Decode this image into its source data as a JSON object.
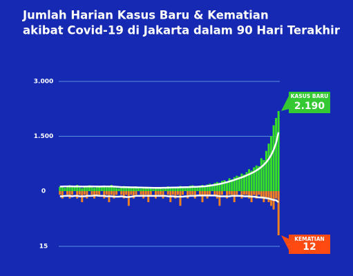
{
  "chart_data": {
    "type": "bar",
    "title": [
      "Jumlah Harian Kasus Baru &  Kematian",
      "akibat Covid-19 di Jakarta dalam 90 Hari Terakhir"
    ],
    "ylim": [
      0,
      3000
    ],
    "yticks": [
      {
        "value": 3000,
        "label": "3.000"
      },
      {
        "value": 1500,
        "label": "1.500"
      },
      0
    ],
    "y2lim": [
      0,
      15
    ],
    "y2ticks": [
      15
    ],
    "y2_inverted": true,
    "grid": true,
    "grid_color": "#5a8fe0",
    "series": [
      {
        "name": "KASUS BARU",
        "color": "#35e025",
        "label_color": "#34c832",
        "trend_color": "#ffffff",
        "values": [
          120,
          150,
          90,
          140,
          160,
          110,
          130,
          170,
          100,
          80,
          140,
          120,
          160,
          150,
          90,
          130,
          110,
          150,
          140,
          100,
          120,
          170,
          130,
          90,
          80,
          110,
          140,
          120,
          100,
          90,
          110,
          130,
          80,
          70,
          100,
          120,
          90,
          110,
          60,
          80,
          100,
          90,
          70,
          110,
          130,
          90,
          80,
          100,
          120,
          140,
          110,
          130,
          90,
          150,
          160,
          120,
          110,
          140,
          170,
          130,
          180,
          200,
          160,
          220,
          250,
          230,
          280,
          300,
          260,
          350,
          320,
          380,
          420,
          400,
          480,
          450,
          520,
          600,
          560,
          650,
          700,
          680,
          900,
          850,
          1100,
          1300,
          1500,
          1800,
          2000,
          2190
        ],
        "value_labels": [
          null,
          null,
          null,
          null,
          null,
          null,
          null,
          null,
          null,
          null,
          null,
          null,
          null,
          null,
          null,
          null,
          null,
          null,
          null,
          null,
          null,
          null,
          null,
          null,
          null,
          null,
          null,
          null,
          null,
          null,
          null,
          null,
          null,
          null,
          null,
          null,
          null,
          null,
          null,
          null,
          null,
          null,
          null,
          null,
          null,
          null,
          null,
          null,
          null,
          null,
          null,
          null,
          null,
          null,
          null,
          null,
          null,
          null,
          null,
          null,
          null,
          null,
          null,
          null,
          null,
          null,
          null,
          null,
          null,
          null,
          null,
          null,
          null,
          null,
          null,
          null,
          null,
          null,
          null,
          null,
          null,
          null,
          null,
          null,
          null,
          null,
          null,
          null,
          null,
          "2.190"
        ],
        "trend_values": [
          125,
          128,
          130,
          130,
          132,
          130,
          128,
          130,
          128,
          125,
          124,
          126,
          128,
          130,
          128,
          126,
          125,
          128,
          130,
          128,
          126,
          127,
          125,
          120,
          115,
          112,
          110,
          108,
          106,
          104,
          103,
          102,
          100,
          98,
          96,
          95,
          94,
          92,
          90,
          90,
          90,
          91,
          92,
          93,
          95,
          97,
          98,
          100,
          102,
          104,
          106,
          108,
          110,
          112,
          115,
          118,
          120,
          124,
          128,
          132,
          140,
          150,
          160,
          170,
          182,
          195,
          210,
          228,
          245,
          265,
          285,
          305,
          330,
          352,
          375,
          400,
          430,
          460,
          490,
          525,
          565,
          610,
          660,
          720,
          790,
          880,
          990,
          1130,
          1320,
          1610
        ]
      },
      {
        "name": "KEMATIAN",
        "color": "#f08020",
        "label_color": "#ff4a12",
        "trend_color": "#ffffff",
        "axis": "y2",
        "values": [
          1,
          2,
          0,
          1,
          2,
          1,
          0,
          2,
          1,
          3,
          1,
          2,
          0,
          1,
          2,
          1,
          1,
          0,
          2,
          1,
          3,
          1,
          2,
          1,
          0,
          1,
          2,
          1,
          4,
          1,
          2,
          1,
          0,
          1,
          2,
          1,
          3,
          1,
          0,
          2,
          1,
          1,
          2,
          0,
          1,
          3,
          1,
          2,
          1,
          4,
          1,
          0,
          2,
          1,
          1,
          2,
          0,
          1,
          3,
          1,
          2,
          1,
          0,
          1,
          2,
          4,
          1,
          0,
          2,
          1,
          1,
          3,
          1,
          0,
          2,
          1,
          1,
          2,
          3,
          1,
          2,
          1,
          2,
          3,
          2,
          3,
          4,
          5,
          2,
          12
        ],
        "trend_values": [
          1.4,
          1.4,
          1.3,
          1.3,
          1.3,
          1.4,
          1.3,
          1.3,
          1.4,
          1.4,
          1.4,
          1.3,
          1.3,
          1.3,
          1.2,
          1.2,
          1.3,
          1.3,
          1.3,
          1.4,
          1.4,
          1.4,
          1.5,
          1.5,
          1.5,
          1.4,
          1.5,
          1.6,
          1.6,
          1.5,
          1.4,
          1.3,
          1.3,
          1.3,
          1.3,
          1.3,
          1.3,
          1.3,
          1.3,
          1.3,
          1.3,
          1.3,
          1.3,
          1.3,
          1.4,
          1.4,
          1.4,
          1.5,
          1.5,
          1.5,
          1.5,
          1.4,
          1.4,
          1.3,
          1.3,
          1.3,
          1.2,
          1.2,
          1.2,
          1.2,
          1.2,
          1.2,
          1.2,
          1.2,
          1.3,
          1.4,
          1.4,
          1.4,
          1.4,
          1.4,
          1.3,
          1.3,
          1.3,
          1.3,
          1.3,
          1.4,
          1.4,
          1.4,
          1.5,
          1.5,
          1.6,
          1.7,
          1.7,
          1.8,
          1.9,
          2.0,
          2.2,
          2.4,
          2.5,
          3.0
        ]
      }
    ]
  }
}
